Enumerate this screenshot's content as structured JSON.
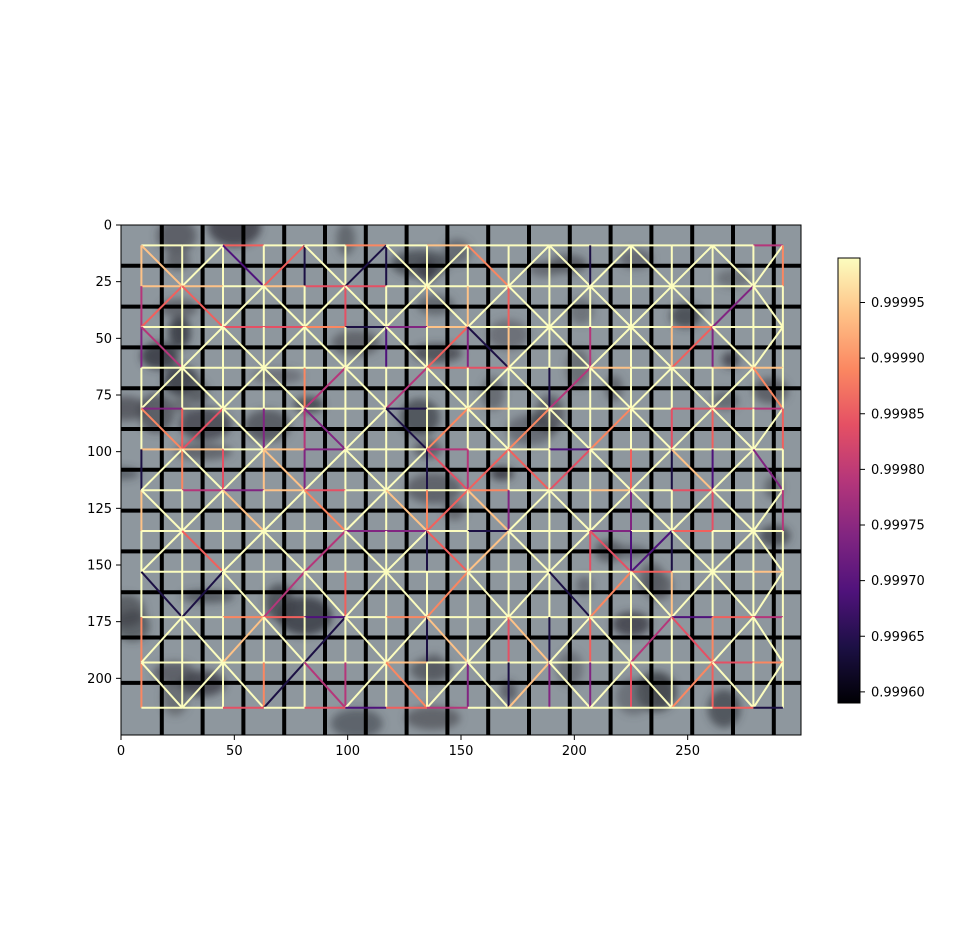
{
  "chart_data": {
    "type": "heatmap",
    "title": "",
    "xlabel": "",
    "ylabel": "",
    "xlim": [
      0,
      300
    ],
    "ylim": [
      225,
      0
    ],
    "x_ticks": [
      "0",
      "50",
      "100",
      "150",
      "200",
      "250"
    ],
    "y_ticks": [
      "0",
      "25",
      "50",
      "75",
      "100",
      "125",
      "150",
      "175",
      "200"
    ],
    "x_tick_values": [
      0,
      50,
      100,
      150,
      200,
      250
    ],
    "y_tick_values": [
      0,
      25,
      50,
      75,
      100,
      125,
      150,
      175,
      200
    ],
    "grid_nodes": {
      "x": [
        9,
        27,
        45,
        63,
        81,
        99,
        117,
        135,
        153,
        171,
        189,
        207,
        225,
        243,
        261,
        279,
        292
      ],
      "y": [
        9,
        27,
        45,
        63,
        81,
        99,
        117,
        135,
        153,
        173,
        193,
        213
      ]
    },
    "black_grid_lines": {
      "vertical_x": [
        18,
        36,
        54,
        72,
        90,
        108,
        126,
        144,
        162,
        180,
        198,
        216,
        234,
        252,
        270,
        288
      ],
      "horizontal_y": [
        18,
        36,
        54,
        72,
        90,
        108,
        126,
        144,
        162,
        182,
        202
      ]
    },
    "colorbar": {
      "colormap": "magma",
      "range": [
        0.99959,
        0.99999
      ],
      "ticks": [
        "0.99960",
        "0.99965",
        "0.99970",
        "0.99975",
        "0.99980",
        "0.99985",
        "0.99990",
        "0.99995"
      ],
      "tick_values": [
        0.9996,
        0.99965,
        0.9997,
        0.99975,
        0.9998,
        0.99985,
        0.9999,
        0.99995
      ]
    },
    "background": "grayscale microscopy image with dark blobs",
    "colors": {
      "background_gray": "#8e979e",
      "mesh_high": "#fcfdbf",
      "mesh_mid": "#f1605d",
      "mesh_low": "#000004"
    }
  }
}
